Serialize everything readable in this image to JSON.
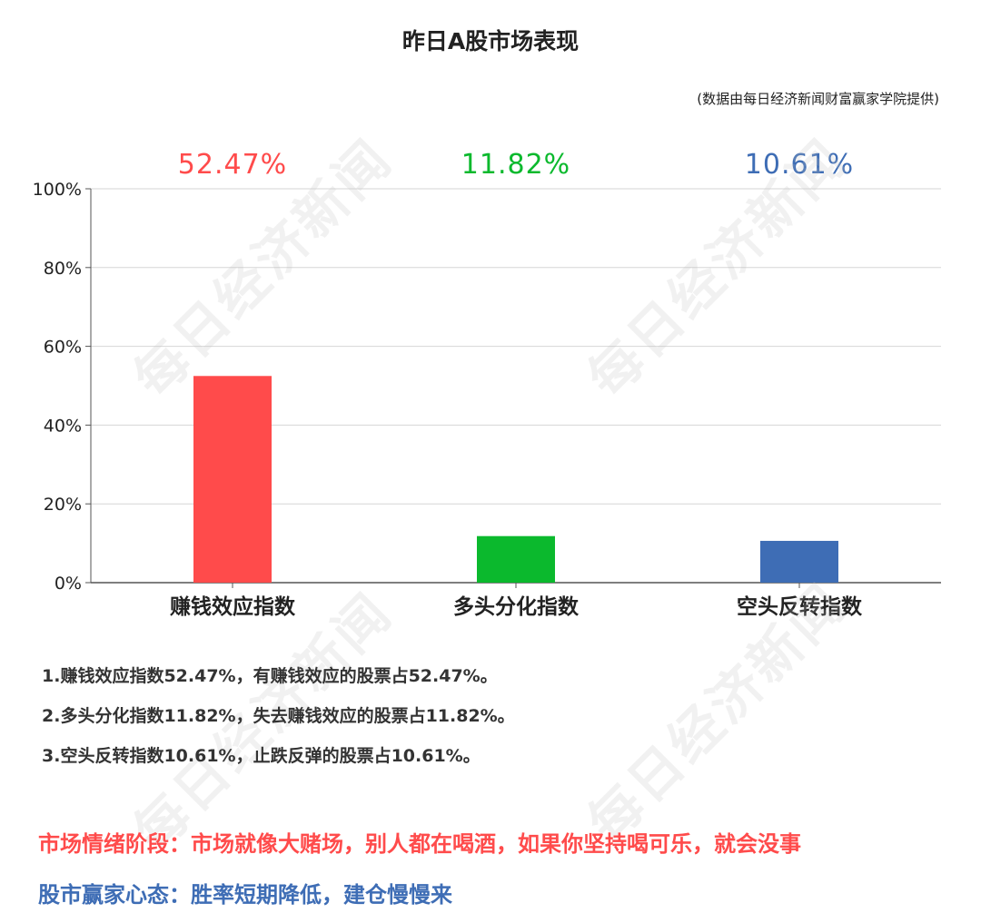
{
  "title": "昨日A股市场表现",
  "source": "(数据由每日经济新闻财富赢家学院提供)",
  "watermark": "每日经济新闻",
  "chart_data": {
    "type": "bar",
    "categories": [
      "赚钱效应指数",
      "多头分化指数",
      "空头反转指数"
    ],
    "values": [
      52.47,
      11.82,
      10.61
    ],
    "value_labels": [
      "52.47%",
      "11.82%",
      "10.61%"
    ],
    "colors": [
      "#ff4b4b",
      "#0bb92d",
      "#3e6db5"
    ],
    "yticks": [
      "0%",
      "20%",
      "40%",
      "60%",
      "80%",
      "100%"
    ],
    "ylim": [
      0,
      100
    ],
    "grid": true,
    "title": "",
    "xlabel": "",
    "ylabel": ""
  },
  "notes": [
    "1.赚钱效应指数52.47%，有赚钱效应的股票占52.47%。",
    "2.多头分化指数11.82%，失去赚钱效应的股票占11.82%。",
    "3.空头反转指数10.61%，止跌反弹的股票占10.61%。"
  ],
  "mood_stage": "市场情绪阶段：市场就像大赌场，别人都在喝酒，如果你坚持喝可乐，就会没事",
  "mood_stage_color": "#ff4b4b",
  "winner_mindset": "股市赢家心态：胜率短期降低，建仓慢慢来",
  "winner_mindset_color": "#3e6db5"
}
